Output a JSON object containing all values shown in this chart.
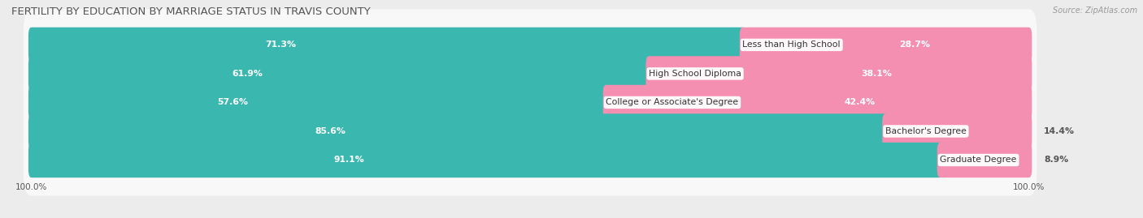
{
  "title": "FERTILITY BY EDUCATION BY MARRIAGE STATUS IN TRAVIS COUNTY",
  "source": "Source: ZipAtlas.com",
  "categories": [
    "Less than High School",
    "High School Diploma",
    "College or Associate's Degree",
    "Bachelor's Degree",
    "Graduate Degree"
  ],
  "married": [
    71.3,
    61.9,
    57.6,
    85.6,
    91.1
  ],
  "unmarried": [
    28.7,
    38.1,
    42.4,
    14.4,
    8.9
  ],
  "married_color": "#3ab8b0",
  "unmarried_color": "#f48fb1",
  "bg_color": "#ececec",
  "row_bg_color": "#f8f8f8",
  "title_fontsize": 9.5,
  "source_fontsize": 7,
  "label_fontsize": 7.8,
  "pct_fontsize": 7.8,
  "tick_fontsize": 7.5
}
